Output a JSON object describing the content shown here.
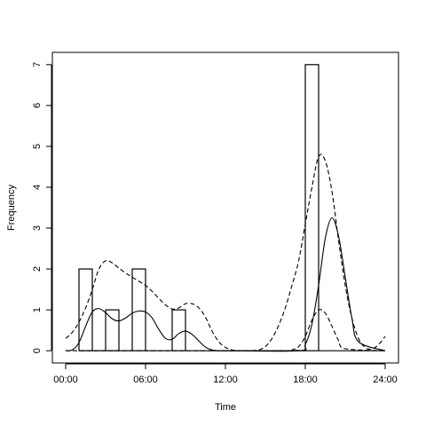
{
  "chart_data": {
    "type": "bar",
    "title": "",
    "xlabel": "Time",
    "ylabel": "Frequency",
    "xlim": [
      -1,
      25
    ],
    "ylim": [
      -0.3,
      7.3
    ],
    "x_ticks": [
      {
        "value": 0,
        "label": "00:00"
      },
      {
        "value": 6,
        "label": "06:00"
      },
      {
        "value": 12,
        "label": "12:00"
      },
      {
        "value": 18,
        "label": "18:00"
      },
      {
        "value": 24,
        "label": "24:00"
      }
    ],
    "y_ticks": [
      0,
      1,
      2,
      3,
      4,
      5,
      6,
      7
    ],
    "bars": [
      {
        "x0": 1,
        "x1": 2,
        "value": 2
      },
      {
        "x0": 2,
        "x1": 3,
        "value": 0
      },
      {
        "x0": 3,
        "x1": 4,
        "value": 1
      },
      {
        "x0": 4,
        "x1": 5,
        "value": 0
      },
      {
        "x0": 5,
        "x1": 6,
        "value": 2
      },
      {
        "x0": 6,
        "x1": 8,
        "value": 0
      },
      {
        "x0": 8,
        "x1": 9,
        "value": 1
      },
      {
        "x0": 9,
        "x1": 18,
        "value": 0
      },
      {
        "x0": 18,
        "x1": 19,
        "value": 7
      },
      {
        "x0": 19,
        "x1": 24,
        "value": 0
      }
    ],
    "series": [
      {
        "style": "solid",
        "x": [
          0,
          0.5,
          1,
          1.5,
          2,
          2.5,
          3,
          3.5,
          4,
          4.5,
          5,
          5.5,
          6,
          6.5,
          7,
          7.5,
          8,
          8.5,
          9,
          9.5,
          10,
          10.5,
          11,
          11.5,
          12,
          17.5,
          18,
          18.5,
          19,
          19.5,
          20,
          20.5,
          21,
          21.5,
          22,
          24
        ],
        "y": [
          0,
          0.02,
          0.2,
          0.6,
          0.95,
          1.03,
          0.93,
          0.78,
          0.73,
          0.8,
          0.92,
          0.97,
          0.95,
          0.8,
          0.52,
          0.3,
          0.28,
          0.42,
          0.48,
          0.4,
          0.24,
          0.09,
          0.02,
          0,
          0,
          0,
          0.15,
          0.65,
          1.6,
          2.75,
          3.25,
          2.8,
          1.8,
          0.8,
          0.22,
          0
        ]
      },
      {
        "style": "dashed",
        "x": [
          0,
          0.5,
          1,
          1.5,
          2,
          2.5,
          3,
          3.5,
          4,
          4.5,
          5,
          5.5,
          6,
          6.5,
          7,
          7.5,
          8,
          8.5,
          9,
          9.5,
          10,
          10.5,
          11,
          11.5,
          12,
          12.5,
          13,
          13.5,
          14,
          14.5,
          15,
          15.5,
          16,
          16.5,
          17,
          17.5,
          18,
          18.5,
          19,
          19.5,
          20,
          20.5,
          21,
          21.5,
          22,
          22.5,
          23,
          23.5,
          24
        ],
        "y": [
          0.3,
          0.45,
          0.7,
          1.05,
          1.5,
          2,
          2.2,
          2.15,
          2.02,
          1.9,
          1.8,
          1.7,
          1.6,
          1.45,
          1.28,
          1.12,
          1.02,
          1.05,
          1.15,
          1.15,
          1.05,
          0.82,
          0.48,
          0.22,
          0.08,
          0.02,
          0,
          0,
          0,
          0.02,
          0.1,
          0.3,
          0.62,
          1.05,
          1.6,
          2.2,
          3.1,
          4.0,
          4.75,
          4.65,
          3.9,
          2.7,
          1.6,
          0.8,
          0.3,
          0.08,
          0.04,
          0.15,
          0.35
        ]
      },
      {
        "style": "dashed",
        "x": [
          0,
          16.5,
          17,
          17.5,
          18,
          18.5,
          19,
          19.5,
          20,
          20.5,
          21,
          24
        ],
        "y": [
          0,
          0,
          0.02,
          0.1,
          0.35,
          0.75,
          1.0,
          0.92,
          0.6,
          0.25,
          0.05,
          0
        ]
      }
    ]
  }
}
